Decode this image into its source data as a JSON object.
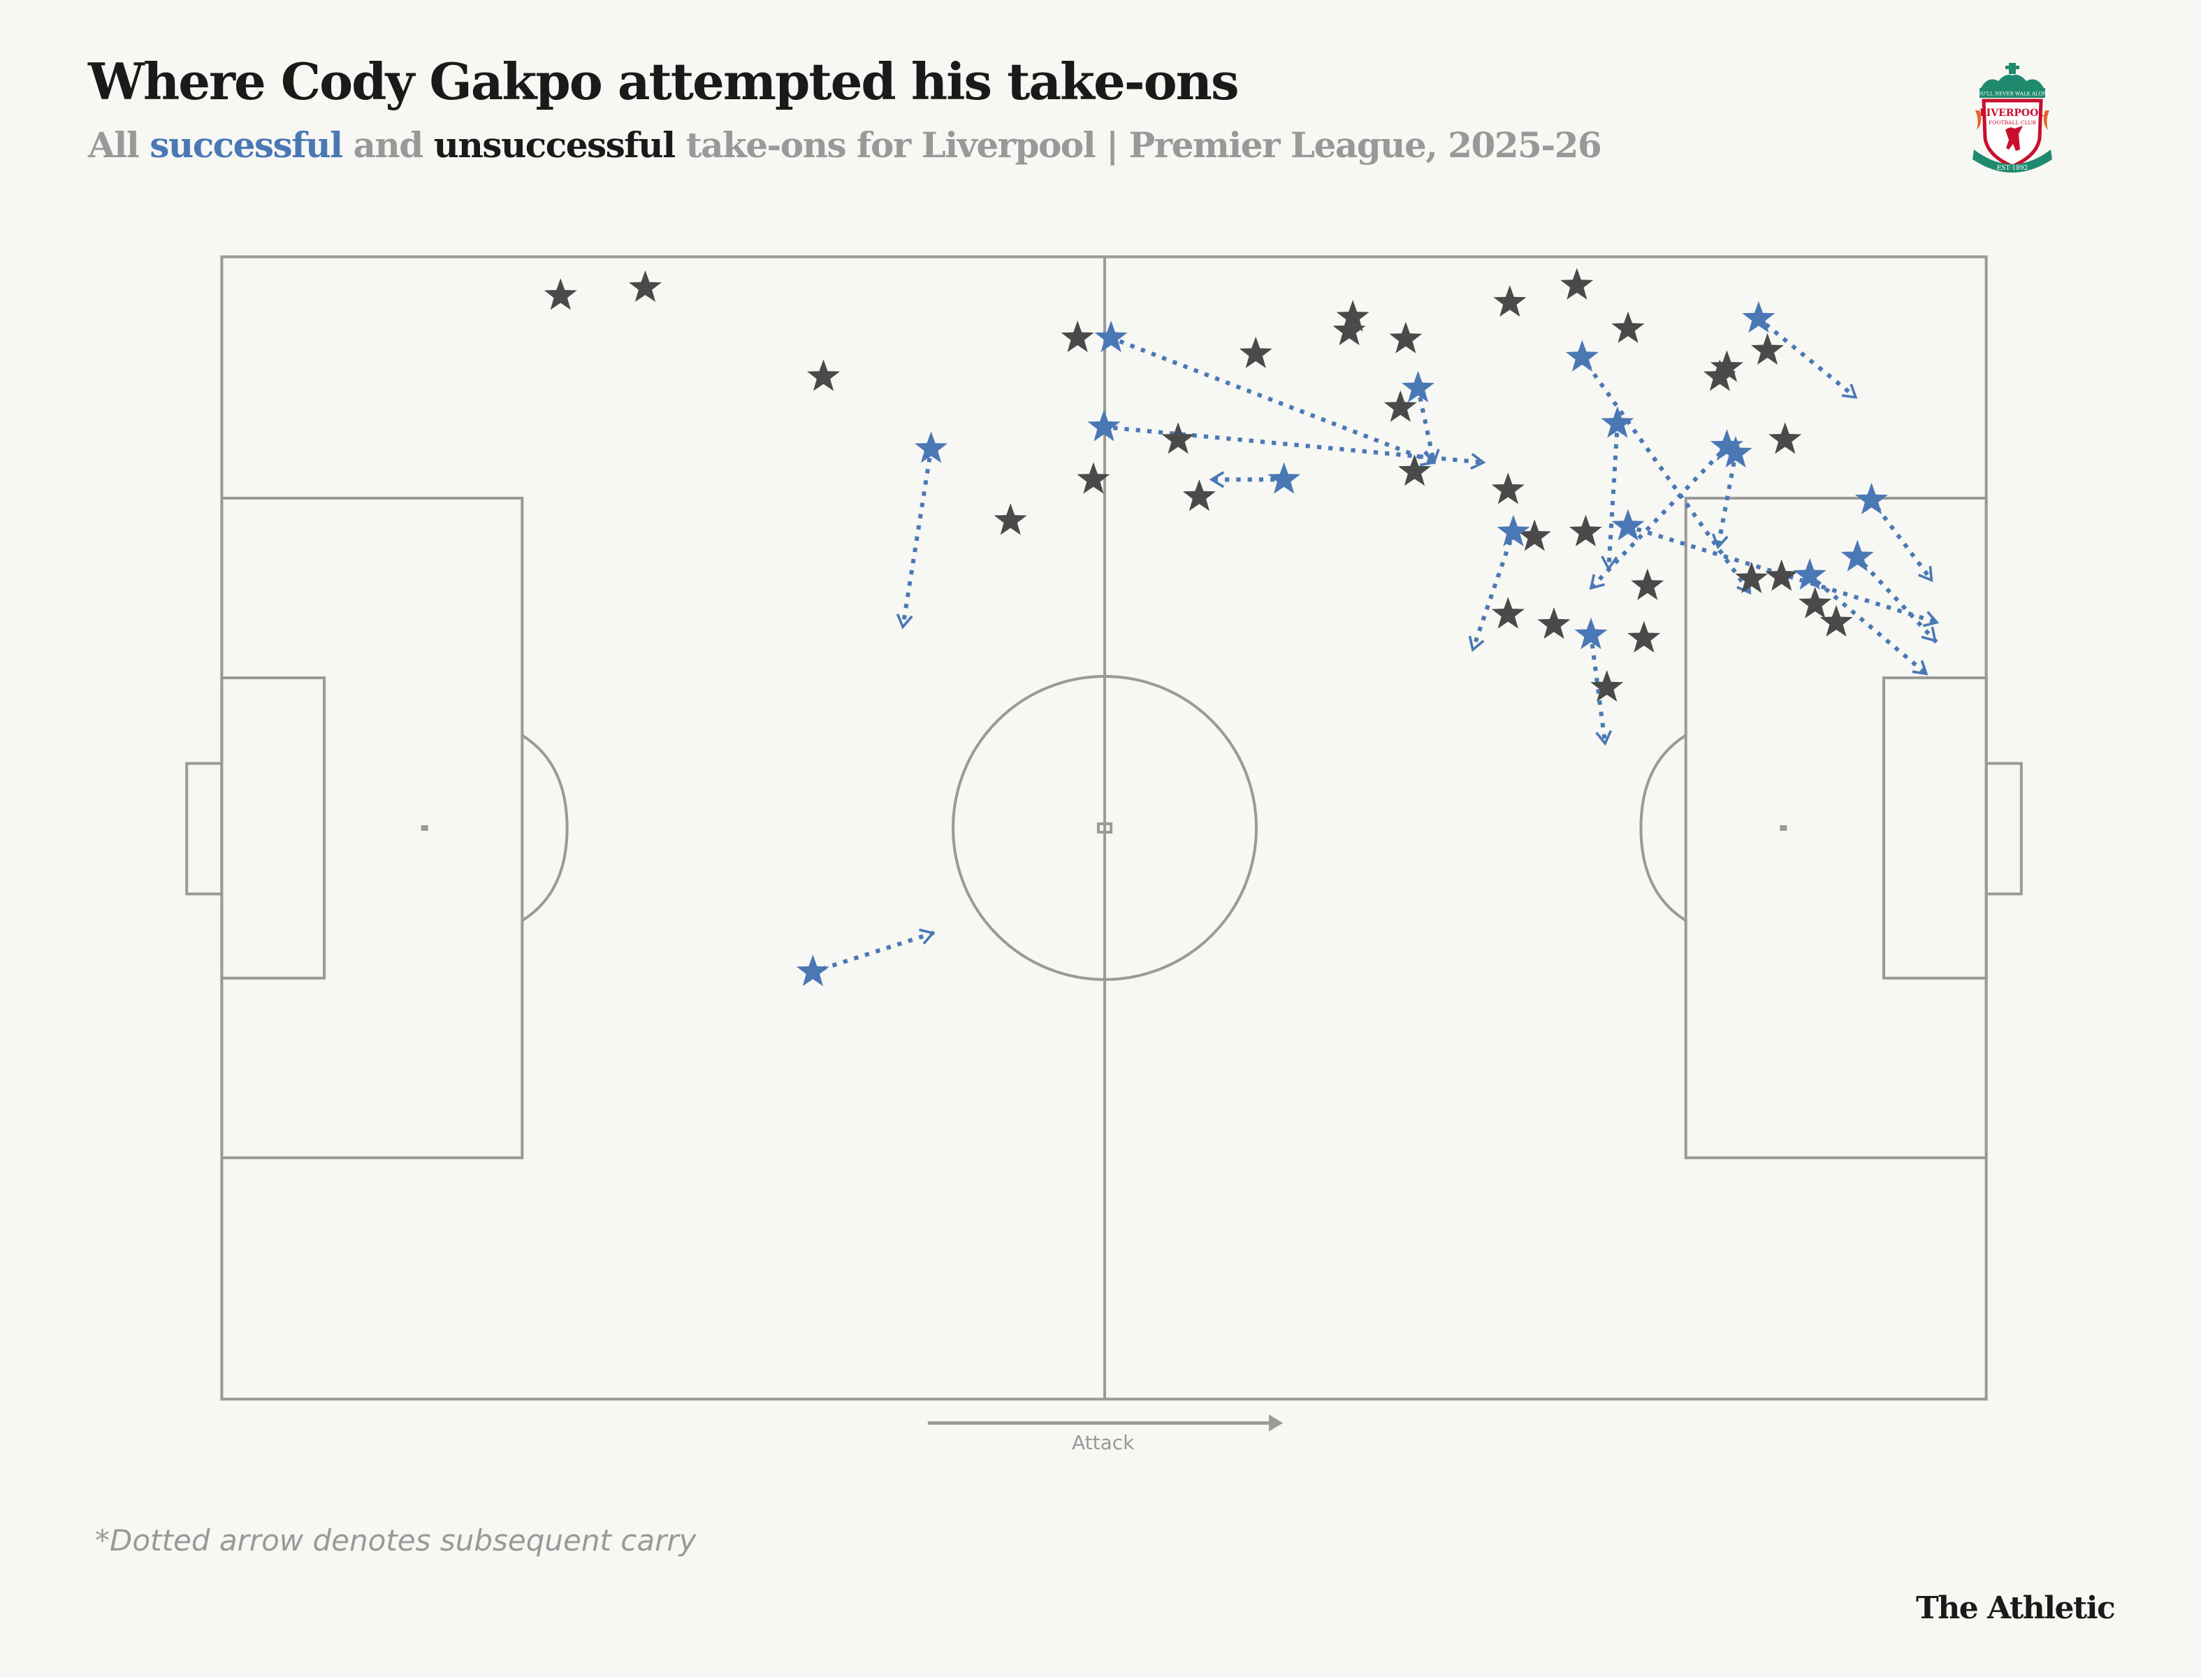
{
  "header": {
    "title": "Where Cody Gakpo attempted his take-ons",
    "subtitle_parts": {
      "prefix": "All ",
      "successful": "successful",
      "middle": " and ",
      "unsuccessful": "unsuccessful",
      "suffix": " take-ons for Liverpool | Premier League, 2025-26"
    },
    "crest": {
      "icon": "liverpool-fc-crest-icon",
      "motto": "YOU'LL NEVER WALK ALONE",
      "name": "LIVERPOOL",
      "sub": "FOOTBALL CLUB",
      "est": "EST·1892"
    }
  },
  "colors": {
    "successful": "#4a78b5",
    "unsuccessful": "#4a4a4a",
    "pitch_lines": "#9a9a98",
    "background": "#f7f7f3",
    "muted_text": "#999999"
  },
  "pitch": {
    "attack_label": "Attack",
    "attack_direction": "left-to-right"
  },
  "footer": {
    "note": "*Dotted arrow denotes subsequent carry",
    "brand": "The Athletic"
  },
  "chart_data": {
    "type": "scatter",
    "title": "Where Cody Gakpo attempted his take-ons",
    "subtitle": "All successful and unsuccessful take-ons for Liverpool | Premier League, 2025-26",
    "xlabel": "Attack →",
    "ylabel": "",
    "coordinate_system": "pitch 0-100 (x: own goal → opponent goal, y: 0 top touchline → 100 bottom touchline)",
    "legend": [
      "successful (blue star)",
      "unsuccessful (dark star)",
      "dotted arrow = subsequent carry"
    ],
    "series": [
      {
        "name": "unsuccessful",
        "color": "#4a4a4a",
        "points": [
          {
            "x": 19.2,
            "y": 3.4
          },
          {
            "x": 24.0,
            "y": 2.7
          },
          {
            "x": 34.1,
            "y": 10.5
          },
          {
            "x": 48.5,
            "y": 7.1
          },
          {
            "x": 44.7,
            "y": 23.1
          },
          {
            "x": 49.4,
            "y": 19.5
          },
          {
            "x": 54.2,
            "y": 16.0
          },
          {
            "x": 55.4,
            "y": 21.0
          },
          {
            "x": 58.6,
            "y": 8.5
          },
          {
            "x": 64.1,
            "y": 5.3
          },
          {
            "x": 63.9,
            "y": 6.5
          },
          {
            "x": 67.1,
            "y": 7.2
          },
          {
            "x": 73.0,
            "y": 4.0
          },
          {
            "x": 76.8,
            "y": 2.5
          },
          {
            "x": 79.7,
            "y": 6.3
          },
          {
            "x": 66.8,
            "y": 13.2
          },
          {
            "x": 67.6,
            "y": 18.8
          },
          {
            "x": 72.9,
            "y": 20.4
          },
          {
            "x": 74.4,
            "y": 24.5
          },
          {
            "x": 77.3,
            "y": 24.1
          },
          {
            "x": 84.9,
            "y": 10.5
          },
          {
            "x": 85.3,
            "y": 9.7
          },
          {
            "x": 87.6,
            "y": 8.2
          },
          {
            "x": 88.6,
            "y": 16.0
          },
          {
            "x": 80.8,
            "y": 28.8
          },
          {
            "x": 72.9,
            "y": 31.3
          },
          {
            "x": 75.5,
            "y": 32.2
          },
          {
            "x": 80.6,
            "y": 33.4
          },
          {
            "x": 78.5,
            "y": 37.7
          },
          {
            "x": 86.7,
            "y": 28.2
          },
          {
            "x": 88.4,
            "y": 28.0
          },
          {
            "x": 90.3,
            "y": 30.4
          },
          {
            "x": 91.5,
            "y": 32.0
          }
        ]
      },
      {
        "name": "successful",
        "color": "#4a78b5",
        "points": [
          {
            "x": 40.2,
            "y": 16.8,
            "carry_to": {
              "x": 38.6,
              "y": 32.4
            }
          },
          {
            "x": 50.4,
            "y": 7.1,
            "carry_to": {
              "x": 68.7,
              "y": 18.0
            }
          },
          {
            "x": 50.0,
            "y": 14.9,
            "carry_to": {
              "x": 71.5,
              "y": 18.0
            }
          },
          {
            "x": 60.2,
            "y": 19.5,
            "carry_to": {
              "x": 56.1,
              "y": 19.5
            }
          },
          {
            "x": 67.8,
            "y": 11.5,
            "carry_to": {
              "x": 68.7,
              "y": 18.0
            }
          },
          {
            "x": 33.5,
            "y": 62.6,
            "carry_to": {
              "x": 40.3,
              "y": 59.2
            }
          },
          {
            "x": 77.1,
            "y": 8.8,
            "carry_to": {
              "x": 86.6,
              "y": 29.4
            }
          },
          {
            "x": 79.1,
            "y": 14.6,
            "carry_to": {
              "x": 78.6,
              "y": 27.3
            }
          },
          {
            "x": 85.3,
            "y": 16.6,
            "carry_to": {
              "x": 77.6,
              "y": 29.0
            }
          },
          {
            "x": 85.8,
            "y": 17.2,
            "carry_to": {
              "x": 84.8,
              "y": 25.4
            }
          },
          {
            "x": 73.2,
            "y": 24.1,
            "carry_to": {
              "x": 70.9,
              "y": 34.4
            }
          },
          {
            "x": 79.7,
            "y": 23.6,
            "carry_to": {
              "x": 97.2,
              "y": 32.0
            }
          },
          {
            "x": 77.6,
            "y": 33.1,
            "carry_to": {
              "x": 78.4,
              "y": 42.6
            }
          },
          {
            "x": 87.1,
            "y": 5.4,
            "carry_to": {
              "x": 92.6,
              "y": 12.3
            }
          },
          {
            "x": 93.5,
            "y": 21.3,
            "carry_to": {
              "x": 96.9,
              "y": 28.3
            }
          },
          {
            "x": 92.7,
            "y": 26.3,
            "carry_to": {
              "x": 97.1,
              "y": 33.6
            }
          },
          {
            "x": 90.0,
            "y": 27.9,
            "carry_to": {
              "x": 96.6,
              "y": 36.5
            }
          }
        ]
      }
    ],
    "totals": {
      "successful": 17,
      "unsuccessful": 33
    }
  }
}
